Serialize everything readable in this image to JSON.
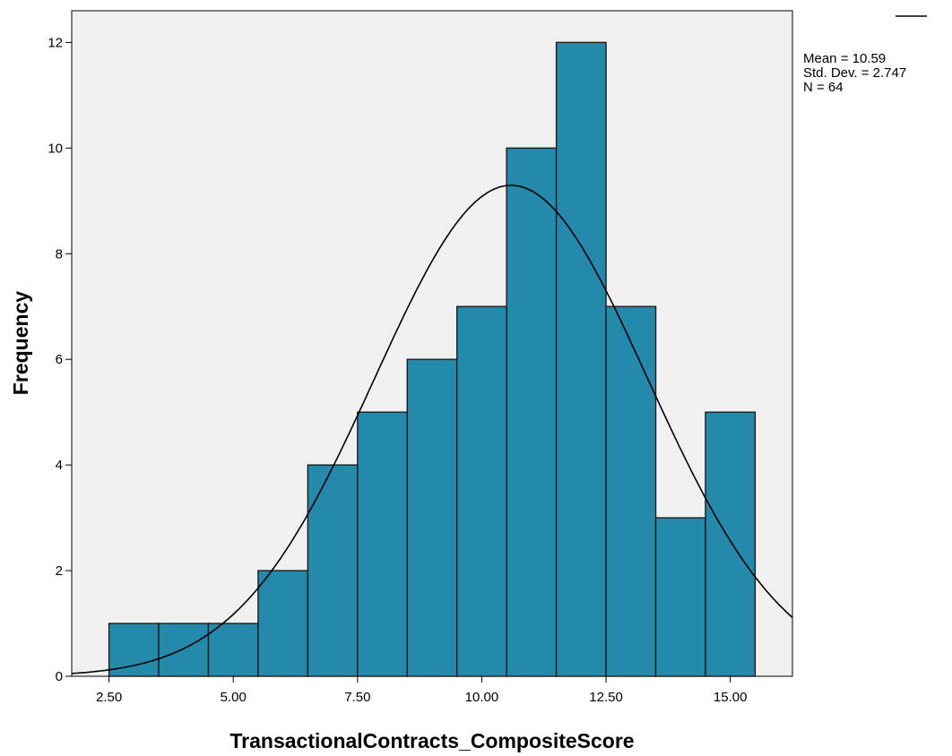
{
  "chart_data": {
    "type": "bar",
    "subtype": "histogram",
    "xlabel": "TransactionalContracts_CompositeScore",
    "ylabel": "Frequency",
    "xlim": [
      1.75,
      16.25
    ],
    "ylim": [
      0,
      12.6
    ],
    "x_ticks": [
      {
        "value": 2.5,
        "label": "2.50"
      },
      {
        "value": 5.0,
        "label": "5.00"
      },
      {
        "value": 7.5,
        "label": "7.50"
      },
      {
        "value": 10.0,
        "label": "10.00"
      },
      {
        "value": 12.5,
        "label": "12.50"
      },
      {
        "value": 15.0,
        "label": "15.00"
      }
    ],
    "y_ticks": [
      {
        "value": 0,
        "label": "0"
      },
      {
        "value": 2,
        "label": "2"
      },
      {
        "value": 4,
        "label": "4"
      },
      {
        "value": 6,
        "label": "6"
      },
      {
        "value": 8,
        "label": "8"
      },
      {
        "value": 10,
        "label": "10"
      },
      {
        "value": 12,
        "label": "12"
      }
    ],
    "bins": [
      {
        "start": 2.5,
        "end": 3.5,
        "count": 1
      },
      {
        "start": 3.5,
        "end": 4.5,
        "count": 1
      },
      {
        "start": 4.5,
        "end": 5.5,
        "count": 1
      },
      {
        "start": 5.5,
        "end": 6.5,
        "count": 2
      },
      {
        "start": 6.5,
        "end": 7.5,
        "count": 4
      },
      {
        "start": 7.5,
        "end": 8.5,
        "count": 5
      },
      {
        "start": 8.5,
        "end": 9.5,
        "count": 6
      },
      {
        "start": 9.5,
        "end": 10.5,
        "count": 7
      },
      {
        "start": 10.5,
        "end": 11.5,
        "count": 10
      },
      {
        "start": 11.5,
        "end": 12.5,
        "count": 12
      },
      {
        "start": 12.5,
        "end": 13.5,
        "count": 7
      },
      {
        "start": 13.5,
        "end": 14.5,
        "count": 3
      },
      {
        "start": 14.5,
        "end": 15.5,
        "count": 5
      }
    ],
    "normal_curve": {
      "mean": 10.59,
      "std": 2.747,
      "n": 64,
      "bin_width": 1.0
    },
    "stats": {
      "mean_label": "Mean = 10.59",
      "std_label": "Std. Dev. = 2.747",
      "n_label": "N = 64"
    },
    "grid": false,
    "legend_position": "top-right",
    "colors": {
      "bar_fill": "#2589AB",
      "bar_stroke": "#1C1C1C",
      "plot_background": "#F0F0F0",
      "curve": "#000000"
    }
  }
}
